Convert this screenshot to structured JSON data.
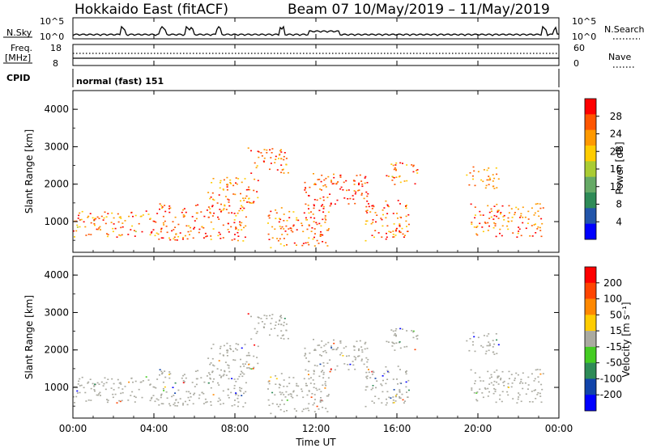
{
  "header": {
    "station": "Hokkaido East (fitACF)",
    "beam_range": "Beam 07  10/May/2019 – 11/May/2019"
  },
  "noise_panel": {
    "left_label": "N.Sky",
    "right_label": "N.Search",
    "left_ticks": [
      "10^5",
      "10^0"
    ],
    "right_ticks": [
      "10^5",
      "10^0"
    ]
  },
  "freq_panel": {
    "left_label_line1": "Freq.",
    "left_label_line2": "[MHz]",
    "left_ticks": [
      "18",
      "8"
    ],
    "right_label": "Nave",
    "right_ticks": [
      "60",
      "0"
    ]
  },
  "cpid": {
    "label": "CPID",
    "value": "normal (fast) 151"
  },
  "colors": {
    "power_palette": [
      "#0000ff",
      "#2255aa",
      "#2e8b57",
      "#66aa66",
      "#aacc33",
      "#ffcc00",
      "#ff9900",
      "#ff5500",
      "#ff0000"
    ],
    "velocity_palette": [
      "#0000ff",
      "#1144aa",
      "#2e8b57",
      "#44cc22",
      "#aaaaa0",
      "#ffcc00",
      "#ff8800",
      "#ff4400",
      "#ff0000"
    ],
    "ground_scatter": "#a9a9a9"
  },
  "chart_data": [
    {
      "type": "heatmap",
      "panel": "power",
      "ylabel": "Slant Range [km]",
      "yticks": [
        "4000",
        "3000",
        "2000",
        "1000"
      ],
      "ylim": [
        180,
        4500
      ],
      "xlim_hours": [
        0,
        24
      ],
      "colorbar_label": "Power [dB]",
      "colorbar_ticks": [
        "28",
        "24",
        "20",
        "16",
        "12",
        "8",
        "4"
      ],
      "colorbar_range": [
        0,
        36
      ]
    },
    {
      "type": "heatmap",
      "panel": "velocity",
      "ylabel": "Slant Range [km]",
      "yticks": [
        "4000",
        "3000",
        "2000",
        "1000"
      ],
      "ylim": [
        180,
        4500
      ],
      "xlim_hours": [
        0,
        24
      ],
      "colorbar_label": "Velocity [m s⁻¹]",
      "colorbar_ticks": [
        "200",
        "100",
        "50",
        "15",
        "-15",
        "-50",
        "-100",
        "-200"
      ]
    }
  ],
  "time_axis": {
    "xlabel": "Time UT",
    "ticks": [
      "00:00",
      "04:00",
      "08:00",
      "12:00",
      "16:00",
      "20:00",
      "00:00"
    ]
  }
}
